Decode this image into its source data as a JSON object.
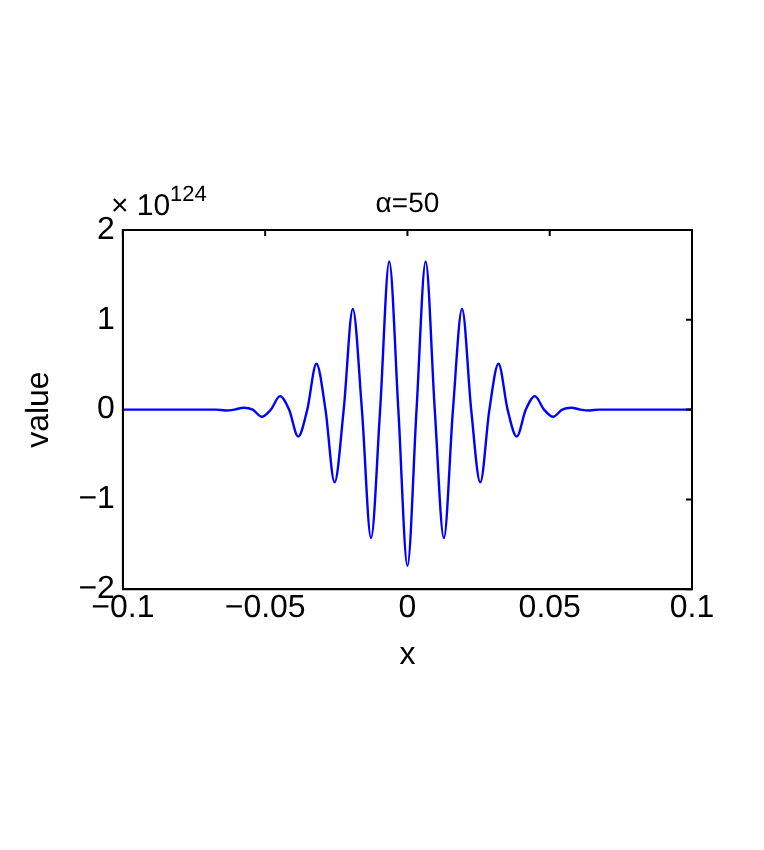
{
  "chart_data": {
    "type": "line",
    "title": "α=50",
    "xlabel": "x",
    "ylabel": "value",
    "annotations": [
      "× 10$^{124}$"
    ],
    "x": [
      -0.1,
      -0.08,
      -0.0672,
      -0.064,
      -0.0608,
      -0.0576,
      -0.0544,
      -0.0512,
      -0.048,
      -0.0448,
      -0.0416,
      -0.0384,
      -0.0352,
      -0.032,
      -0.0288,
      -0.0256,
      -0.0224,
      -0.0192,
      -0.016,
      -0.0128,
      -0.0096,
      -0.0064,
      -0.0032,
      0,
      0.0032,
      0.0064,
      0.0096,
      0.0128,
      0.016,
      0.0192,
      0.0224,
      0.0256,
      0.0288,
      0.032,
      0.0352,
      0.0384,
      0.0416,
      0.0448,
      0.048,
      0.0512,
      0.0544,
      0.0576,
      0.0608,
      0.064,
      0.0672,
      0.08,
      0.1
    ],
    "series": [
      {
        "color": "#0000ff",
        "values": [
          0,
          0,
          0,
          -0.01,
          0,
          0.02,
          0,
          -0.08,
          0,
          0.15,
          0,
          -0.3,
          0,
          0.51,
          0,
          -0.81,
          0,
          1.12,
          0,
          -1.43,
          0,
          1.65,
          0,
          -1.74,
          0,
          1.65,
          0,
          -1.43,
          0,
          1.12,
          0,
          -0.81,
          0,
          0.51,
          0,
          -0.3,
          0,
          0.15,
          0,
          -0.08,
          0,
          0.02,
          0,
          -0.01,
          0,
          0,
          0
        ]
      }
    ],
    "xlim": [
      -0.1,
      0.1
    ],
    "xticks": [
      -0.1,
      -0.05,
      0,
      0.05,
      0.1
    ],
    "ylim": [
      -2,
      2
    ],
    "yticks": [
      -2,
      -1,
      0,
      1,
      2
    ],
    "grid": false,
    "legend": false,
    "marker": "none",
    "line_style": "solid"
  }
}
